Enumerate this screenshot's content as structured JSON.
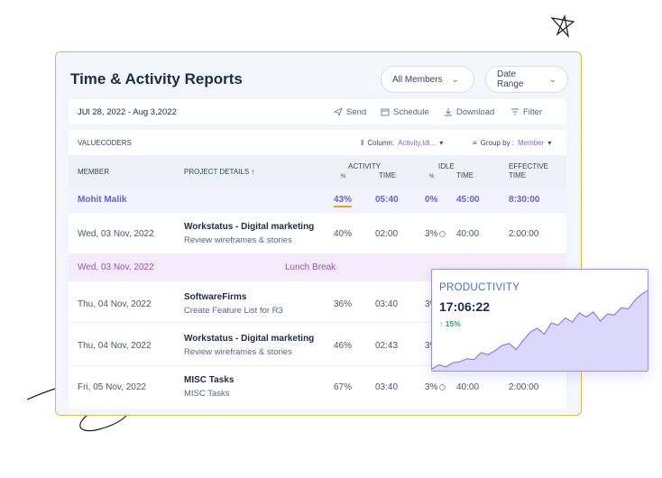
{
  "report": {
    "title": "Time & Activity Reports",
    "members_select": "All Members",
    "date_select": "Date Range"
  },
  "toolbar": {
    "date_range": "JUl 28, 2022 - Aug 3,2022",
    "send": "Send",
    "schedule": "Schedule",
    "download": "Download",
    "filter": "Filter"
  },
  "table": {
    "org": "VALUECODERS",
    "column_label": "Column:",
    "column_value": "Activity,Idl...",
    "group_label": "Group by :",
    "group_value": "Member",
    "headers": {
      "member": "MEMBER",
      "project": "PROJECT DETAILS ↑",
      "activity": "ACTIVITY",
      "activity_pct": "%",
      "activity_time": "TIME",
      "idle": "IDLE",
      "idle_pct": "%",
      "idle_time": "TIME",
      "effective": "EFFECTIVE",
      "effective_time": "TIME"
    },
    "member_row": {
      "name": "Mohit Malik",
      "activity_pct": "43%",
      "activity_time": "05:40",
      "idle_pct": "0%",
      "idle_time": "45:00",
      "effective": "8:30:00"
    },
    "rows": [
      {
        "date": "Wed, 03 Nov, 2022",
        "project": "Workstatus - Digital marketing",
        "task": "Review wireframes & stories",
        "activity_pct": "40%",
        "activity_time": "02:00",
        "idle_pct": "3%",
        "idle_time": "40:00",
        "effective": "2:00:00"
      },
      {
        "date": "Thu, 04 Nov, 2022",
        "project": "SoftwareFirms",
        "task": "Create Feature List for R3",
        "activity_pct": "36%",
        "activity_time": "03:40",
        "idle_pct": "3%"
      },
      {
        "date": "Thu, 04 Nov, 2022",
        "project": "Workstatus - Digital marketing",
        "task": "Review wireframes & stories",
        "activity_pct": "46%",
        "activity_time": "02:43",
        "idle_pct": "3%"
      },
      {
        "date": "Fri, 05 Nov, 2022",
        "project": "MISC Tasks",
        "task": "MISC Tasks",
        "activity_pct": "67%",
        "activity_time": "03:40",
        "idle_pct": "3%",
        "idle_time": "40:00",
        "effective": "2:00:00"
      }
    ],
    "break_row": {
      "date": "Wed, 03 Nov, 2022",
      "label": "Lunch Break"
    }
  },
  "productivity": {
    "label": "PRODUCTIVITY",
    "time": "17:06:22",
    "change": "15%",
    "change_arrow": "↑",
    "series": [
      2,
      6,
      4,
      8,
      9,
      12,
      11,
      18,
      16,
      20,
      25,
      27,
      21,
      30,
      38,
      42,
      36,
      47,
      45,
      52,
      48,
      57,
      53,
      58,
      49,
      56,
      55,
      62,
      61,
      70,
      76,
      80
    ],
    "fill_color": "#dcd8fb",
    "line_color": "#8a7fe6"
  }
}
